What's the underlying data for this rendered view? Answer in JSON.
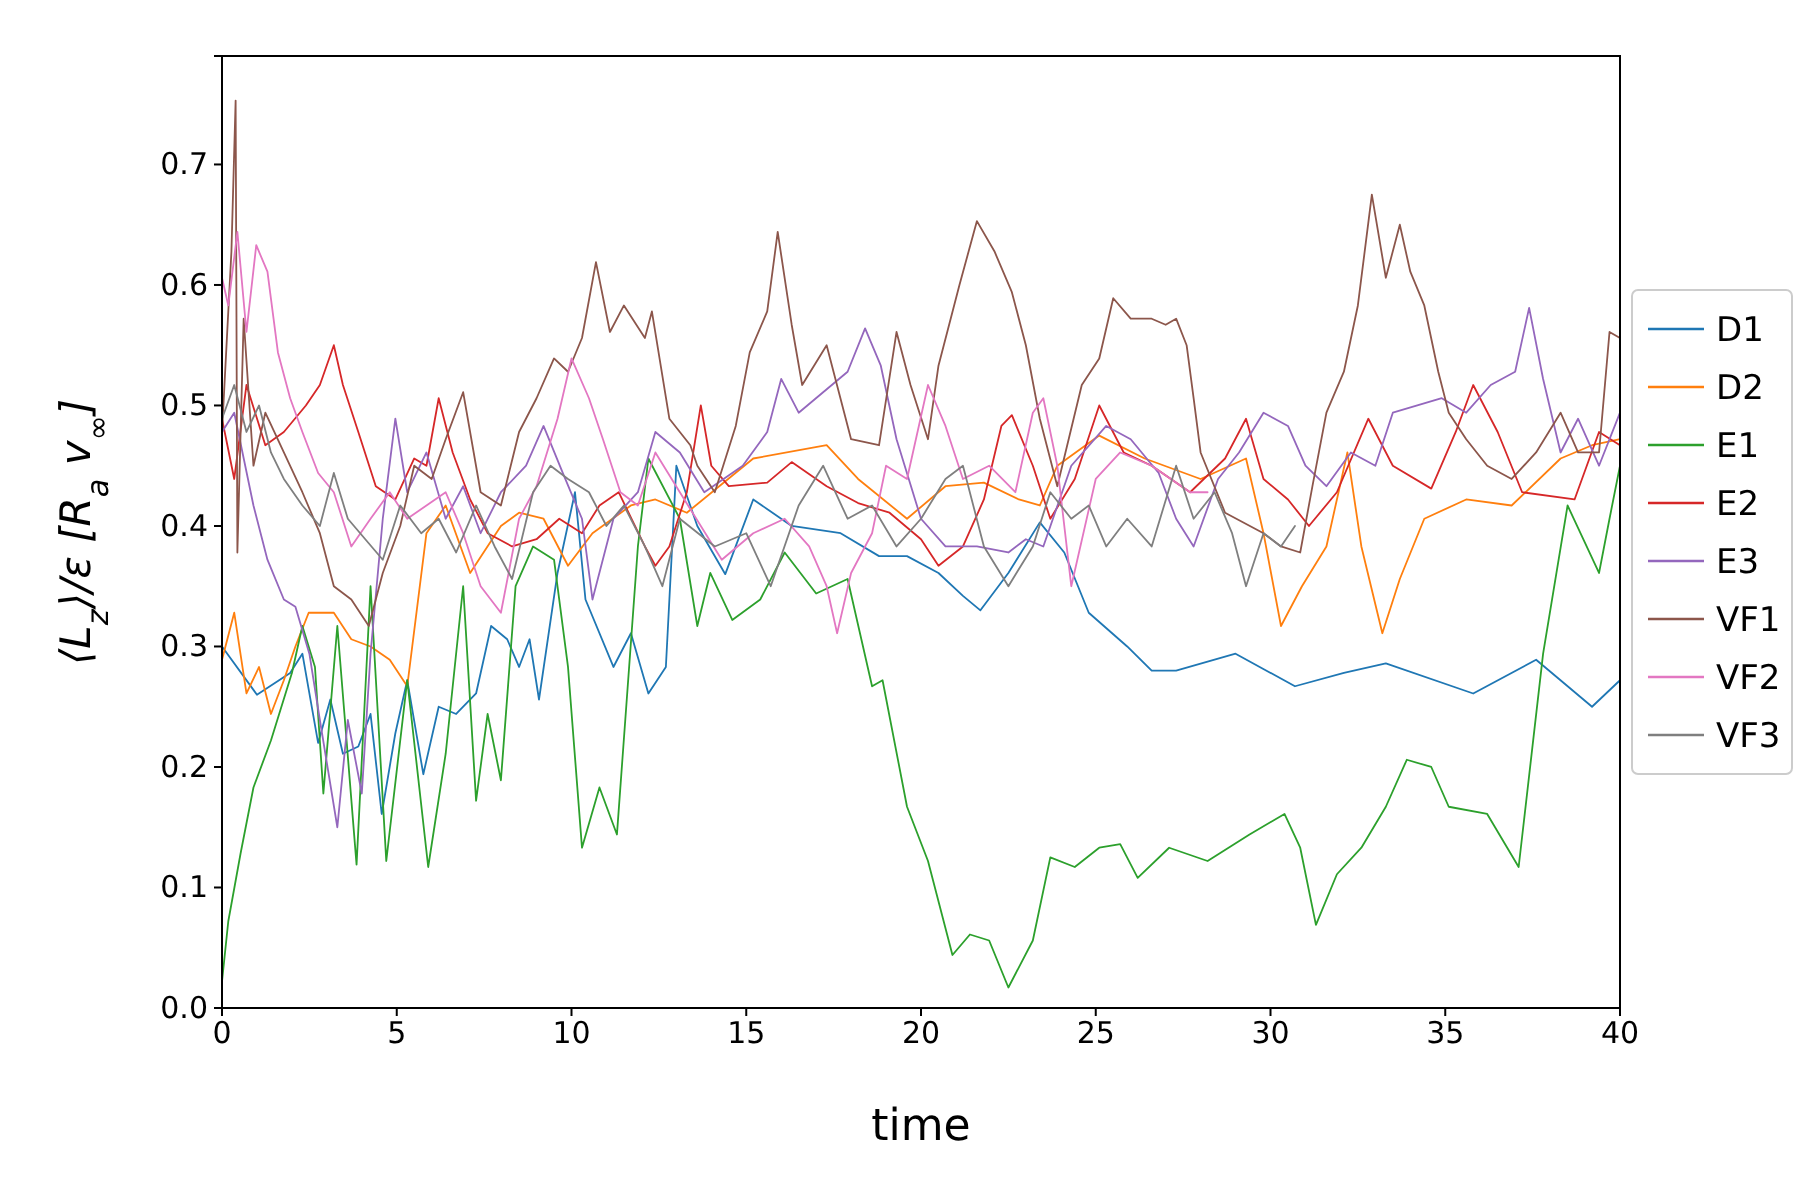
{
  "chart_data": {
    "type": "line",
    "xlabel": "time",
    "ylabel": "⟨L$_{z}$⟩/ε [R$_{a}$ v$_{∞}$]",
    "xlim": [
      0,
      40
    ],
    "ylim": [
      0,
      0.79
    ],
    "xticks": [
      0,
      5,
      10,
      15,
      20,
      25,
      30,
      35,
      40
    ],
    "yticks": [
      {
        "value": 0,
        "label": "0.0"
      },
      0.1,
      0.2,
      0.3,
      0.4,
      0.5,
      0.6,
      0.7
    ],
    "grid": false,
    "legend": "right",
    "marker": "none",
    "line_style": "solid",
    "series": [
      {
        "name": "D1",
        "color": "#1f77b4",
        "x": [
          0,
          1,
          1.95,
          2.3,
          2.75,
          3.1,
          3.46,
          3.9,
          4.25,
          4.57,
          4.96,
          5.3,
          5.76,
          6.2,
          6.7,
          7.27,
          7.7,
          8.16,
          8.5,
          8.8,
          9.07,
          9.6,
          10.1,
          10.4,
          11.2,
          11.7,
          12.2,
          12.7,
          13.0,
          13.6,
          14.4,
          15.2,
          16.3,
          17.7,
          18.8,
          19.6,
          20.5,
          21.2,
          21.7,
          22.5,
          23.4,
          24.1,
          24.8,
          25.9,
          26.6,
          27.3,
          29,
          30.7,
          32.1,
          33.3,
          35.8,
          37.6,
          39.2,
          40
        ],
        "values": [
          0.3,
          0.26,
          0.278,
          0.294,
          0.22,
          0.256,
          0.211,
          0.217,
          0.244,
          0.161,
          0.228,
          0.272,
          0.194,
          0.25,
          0.244,
          0.261,
          0.317,
          0.306,
          0.283,
          0.306,
          0.256,
          0.361,
          0.428,
          0.339,
          0.283,
          0.311,
          0.261,
          0.283,
          0.45,
          0.4,
          0.36,
          0.422,
          0.4,
          0.394,
          0.375,
          0.375,
          0.361,
          0.342,
          0.33,
          0.361,
          0.403,
          0.378,
          0.328,
          0.3,
          0.28,
          0.28,
          0.294,
          0.267,
          0.278,
          0.286,
          0.261,
          0.289,
          0.25,
          0.272
        ]
      },
      {
        "name": "D2",
        "color": "#ff7f0e",
        "x": [
          0,
          0.35,
          0.7,
          1.06,
          1.4,
          1.77,
          2.1,
          2.48,
          3.2,
          3.7,
          4.25,
          4.8,
          5.3,
          5.85,
          6.4,
          7.1,
          7.98,
          8.5,
          9.2,
          9.9,
          10.6,
          11.7,
          12.4,
          13.3,
          15.2,
          17.3,
          18.2,
          19.6,
          20.7,
          21.8,
          22.8,
          23.4,
          23.9,
          25.1,
          26.4,
          28,
          29.3,
          29.8,
          30.3,
          30.9,
          31.6,
          32.2,
          32.6,
          33.2,
          33.7,
          34.4,
          35.6,
          36.9,
          38.3,
          39.2,
          40
        ],
        "values": [
          0.289,
          0.328,
          0.261,
          0.283,
          0.244,
          0.272,
          0.3,
          0.328,
          0.328,
          0.306,
          0.3,
          0.289,
          0.267,
          0.394,
          0.417,
          0.361,
          0.4,
          0.411,
          0.406,
          0.367,
          0.394,
          0.417,
          0.422,
          0.411,
          0.456,
          0.467,
          0.439,
          0.406,
          0.433,
          0.436,
          0.422,
          0.417,
          0.45,
          0.475,
          0.456,
          0.439,
          0.456,
          0.394,
          0.317,
          0.35,
          0.383,
          0.461,
          0.383,
          0.311,
          0.356,
          0.406,
          0.422,
          0.417,
          0.456,
          0.467,
          0.472
        ]
      },
      {
        "name": "E1",
        "color": "#2ca02c",
        "x": [
          0,
          0.18,
          0.53,
          0.9,
          1.4,
          2,
          2.3,
          2.66,
          2.9,
          3.3,
          3.85,
          4.25,
          4.7,
          5.3,
          5.9,
          6.4,
          6.9,
          7.27,
          7.6,
          7.98,
          8.4,
          8.9,
          9.5,
          9.9,
          10.3,
          10.8,
          11.3,
          11.9,
          12.2,
          13.1,
          13.6,
          13.97,
          14.6,
          15.4,
          16.1,
          17,
          17.9,
          18.6,
          18.9,
          19.6,
          20.2,
          20.9,
          21.4,
          21.95,
          22.5,
          23.2,
          23.7,
          24.4,
          25.1,
          25.7,
          26.2,
          27.1,
          28.2,
          29.4,
          30.4,
          30.85,
          31.3,
          31.9,
          32.6,
          33.3,
          33.9,
          34.6,
          35.1,
          36.2,
          37.1,
          37.8,
          38.5,
          39.4,
          39.7,
          40
        ],
        "values": [
          0.022,
          0.072,
          0.128,
          0.183,
          0.222,
          0.278,
          0.317,
          0.283,
          0.178,
          0.317,
          0.119,
          0.35,
          0.122,
          0.272,
          0.117,
          0.211,
          0.35,
          0.172,
          0.244,
          0.189,
          0.35,
          0.383,
          0.372,
          0.283,
          0.133,
          0.183,
          0.144,
          0.383,
          0.456,
          0.406,
          0.317,
          0.361,
          0.322,
          0.339,
          0.378,
          0.344,
          0.356,
          0.267,
          0.272,
          0.167,
          0.122,
          0.044,
          0.061,
          0.056,
          0.017,
          0.056,
          0.125,
          0.117,
          0.133,
          0.136,
          0.108,
          0.133,
          0.122,
          0.144,
          0.161,
          0.133,
          0.069,
          0.111,
          0.133,
          0.167,
          0.206,
          0.2,
          0.167,
          0.161,
          0.117,
          0.294,
          0.417,
          0.361,
          0.406,
          0.45
        ]
      },
      {
        "name": "E2",
        "color": "#d62728",
        "x": [
          0,
          0.35,
          0.7,
          1.24,
          1.77,
          2.4,
          2.8,
          3.2,
          3.46,
          3.9,
          4.4,
          4.96,
          5.5,
          5.85,
          6.2,
          6.6,
          7.1,
          7.6,
          8.3,
          9.0,
          9.65,
          10.3,
          10.8,
          11.35,
          12.1,
          12.4,
          12.8,
          13.3,
          13.7,
          14,
          14.5,
          15.6,
          16.3,
          17.3,
          18.2,
          19.1,
          20,
          20.5,
          21.2,
          21.8,
          22.3,
          22.6,
          23.2,
          23.7,
          24.4,
          25.1,
          25.8,
          26.6,
          27.7,
          28.7,
          29.3,
          29.8,
          30.5,
          31.1,
          31.9,
          32.8,
          33.5,
          34.6,
          35.3,
          35.8,
          36.5,
          37.2,
          38.7,
          39.4,
          40
        ],
        "values": [
          0.489,
          0.439,
          0.517,
          0.467,
          0.478,
          0.5,
          0.517,
          0.55,
          0.517,
          0.478,
          0.433,
          0.422,
          0.456,
          0.45,
          0.506,
          0.461,
          0.422,
          0.394,
          0.383,
          0.389,
          0.406,
          0.394,
          0.417,
          0.428,
          0.383,
          0.367,
          0.383,
          0.428,
          0.5,
          0.45,
          0.433,
          0.436,
          0.453,
          0.433,
          0.419,
          0.411,
          0.389,
          0.367,
          0.383,
          0.422,
          0.483,
          0.492,
          0.45,
          0.406,
          0.439,
          0.5,
          0.461,
          0.45,
          0.428,
          0.456,
          0.489,
          0.439,
          0.422,
          0.4,
          0.428,
          0.489,
          0.45,
          0.431,
          0.478,
          0.517,
          0.478,
          0.428,
          0.422,
          0.478,
          0.467
        ]
      },
      {
        "name": "E3",
        "color": "#9467bd",
        "x": [
          0,
          0.35,
          0.9,
          1.3,
          1.77,
          2.1,
          2.5,
          2.8,
          3.3,
          3.6,
          4.0,
          4.25,
          4.6,
          4.96,
          5.3,
          5.85,
          6.4,
          6.9,
          7.4,
          7.98,
          8.7,
          9.2,
          9.75,
          10.3,
          10.6,
          11.2,
          11.9,
          12.4,
          13.1,
          13.8,
          14.9,
          15.6,
          16,
          16.5,
          17.2,
          17.9,
          18.4,
          18.85,
          19.3,
          20,
          20.7,
          21.6,
          22.5,
          23,
          23.5,
          24.3,
          25.3,
          26,
          26.8,
          27.3,
          27.8,
          28.5,
          29.1,
          29.8,
          30.5,
          31,
          31.6,
          32.3,
          33,
          33.5,
          34.2,
          34.9,
          35.6,
          36.3,
          37,
          37.4,
          37.8,
          38.3,
          38.8,
          39.4,
          40
        ],
        "values": [
          0.478,
          0.494,
          0.417,
          0.372,
          0.339,
          0.333,
          0.294,
          0.239,
          0.15,
          0.239,
          0.178,
          0.294,
          0.406,
          0.489,
          0.428,
          0.461,
          0.406,
          0.433,
          0.394,
          0.428,
          0.45,
          0.483,
          0.444,
          0.406,
          0.339,
          0.406,
          0.428,
          0.478,
          0.461,
          0.428,
          0.45,
          0.478,
          0.522,
          0.494,
          0.511,
          0.528,
          0.564,
          0.533,
          0.472,
          0.406,
          0.383,
          0.383,
          0.378,
          0.389,
          0.383,
          0.45,
          0.483,
          0.472,
          0.444,
          0.406,
          0.383,
          0.439,
          0.461,
          0.494,
          0.483,
          0.45,
          0.433,
          0.461,
          0.45,
          0.494,
          0.5,
          0.506,
          0.494,
          0.517,
          0.528,
          0.581,
          0.522,
          0.461,
          0.489,
          0.45,
          0.494
        ]
      },
      {
        "name": "VF1",
        "color": "#8c564b",
        "x": [
          0,
          0.27,
          0.39,
          0.44,
          0.62,
          0.9,
          1.24,
          1.77,
          2.3,
          2.8,
          3.2,
          3.7,
          4.2,
          4.6,
          5.1,
          5.5,
          6,
          6.4,
          6.9,
          7.4,
          7.98,
          8.5,
          9.0,
          9.5,
          9.9,
          10.3,
          10.7,
          11.1,
          11.5,
          12.1,
          12.3,
          12.8,
          13.4,
          13.6,
          14.1,
          14.7,
          15.1,
          15.6,
          15.9,
          16.3,
          16.6,
          17.3,
          18.0,
          18.8,
          19.3,
          19.7,
          20.2,
          20.5,
          21.1,
          21.6,
          22.1,
          22.6,
          23,
          23.4,
          23.9,
          24.6,
          25.1,
          25.5,
          26,
          26.6,
          27,
          27.3,
          27.6,
          27.8,
          28,
          28.7,
          29.8,
          30.3,
          30.85,
          31.2,
          31.6,
          32.1,
          32.5,
          32.9,
          33.3,
          33.7,
          34,
          34.4,
          34.8,
          35.1,
          35.6,
          36.2,
          36.9,
          37.6,
          38.3,
          38.8,
          39.4,
          39.7,
          40
        ],
        "values": [
          0.478,
          0.628,
          0.753,
          0.378,
          0.572,
          0.45,
          0.494,
          0.461,
          0.428,
          0.394,
          0.35,
          0.339,
          0.317,
          0.361,
          0.4,
          0.45,
          0.439,
          0.472,
          0.511,
          0.428,
          0.417,
          0.478,
          0.506,
          0.539,
          0.528,
          0.556,
          0.619,
          0.561,
          0.583,
          0.556,
          0.578,
          0.489,
          0.467,
          0.45,
          0.428,
          0.483,
          0.544,
          0.578,
          0.644,
          0.567,
          0.517,
          0.55,
          0.472,
          0.467,
          0.561,
          0.517,
          0.472,
          0.533,
          0.6,
          0.653,
          0.628,
          0.594,
          0.55,
          0.489,
          0.433,
          0.517,
          0.539,
          0.589,
          0.572,
          0.572,
          0.567,
          0.572,
          0.55,
          0.506,
          0.461,
          0.411,
          0.394,
          0.383,
          0.378,
          0.433,
          0.494,
          0.528,
          0.583,
          0.675,
          0.606,
          0.65,
          0.611,
          0.583,
          0.528,
          0.494,
          0.472,
          0.45,
          0.439,
          0.461,
          0.494,
          0.461,
          0.461,
          0.561,
          0.556
        ]
      },
      {
        "name": "VF2",
        "color": "#e377c2",
        "x": [
          0,
          0.18,
          0.44,
          0.7,
          0.98,
          1.3,
          1.6,
          1.95,
          2.3,
          2.75,
          3.2,
          3.7,
          4.25,
          4.8,
          5.3,
          5.85,
          6.4,
          6.9,
          7.4,
          7.98,
          8.5,
          9.0,
          9.6,
          10,
          10.5,
          10.9,
          11.4,
          11.9,
          12.4,
          13.1,
          14.3,
          15.2,
          16.1,
          16.8,
          17.3,
          17.6,
          18,
          18.6,
          19,
          19.6,
          20.2,
          20.7,
          21.2,
          21.95,
          22.7,
          23.2,
          23.5,
          23.9,
          24.3,
          25,
          25.7,
          26.6,
          26.9,
          27.7,
          28.2
        ],
        "values": [
          0.606,
          0.583,
          0.644,
          0.561,
          0.633,
          0.611,
          0.544,
          0.506,
          0.478,
          0.444,
          0.428,
          0.383,
          0.406,
          0.428,
          0.406,
          0.417,
          0.428,
          0.394,
          0.35,
          0.328,
          0.406,
          0.433,
          0.489,
          0.539,
          0.506,
          0.472,
          0.428,
          0.417,
          0.461,
          0.428,
          0.372,
          0.394,
          0.406,
          0.383,
          0.35,
          0.311,
          0.361,
          0.394,
          0.45,
          0.439,
          0.517,
          0.483,
          0.439,
          0.45,
          0.428,
          0.494,
          0.506,
          0.45,
          0.35,
          0.439,
          0.461,
          0.45,
          0.444,
          0.428,
          0.428
        ]
      },
      {
        "name": "VF3",
        "color": "#7f7f7f",
        "x": [
          0,
          0.35,
          0.7,
          1.06,
          1.4,
          1.77,
          2.3,
          2.8,
          3.2,
          3.6,
          4.1,
          4.6,
          5.1,
          5.7,
          6.2,
          6.7,
          7.27,
          7.8,
          8.3,
          8.9,
          9.4,
          9.9,
          10.5,
          11,
          11.5,
          12.1,
          12.6,
          13.1,
          14.1,
          15,
          15.7,
          16.5,
          17.2,
          17.9,
          18.6,
          19.3,
          20,
          20.7,
          21.2,
          21.8,
          22.5,
          23.2,
          23.7,
          24.3,
          24.8,
          25.3,
          25.9,
          26.6,
          27.3,
          27.8,
          28.4,
          28.9,
          29.3,
          29.8,
          30.3,
          30.7
        ],
        "values": [
          0.489,
          0.517,
          0.478,
          0.5,
          0.461,
          0.439,
          0.417,
          0.4,
          0.444,
          0.406,
          0.389,
          0.372,
          0.417,
          0.394,
          0.406,
          0.378,
          0.417,
          0.383,
          0.356,
          0.428,
          0.45,
          0.439,
          0.428,
          0.4,
          0.417,
          0.383,
          0.35,
          0.406,
          0.383,
          0.394,
          0.35,
          0.417,
          0.45,
          0.406,
          0.417,
          0.383,
          0.406,
          0.439,
          0.45,
          0.383,
          0.35,
          0.383,
          0.428,
          0.406,
          0.417,
          0.383,
          0.406,
          0.383,
          0.45,
          0.406,
          0.428,
          0.394,
          0.35,
          0.394,
          0.383,
          0.4
        ]
      }
    ]
  }
}
